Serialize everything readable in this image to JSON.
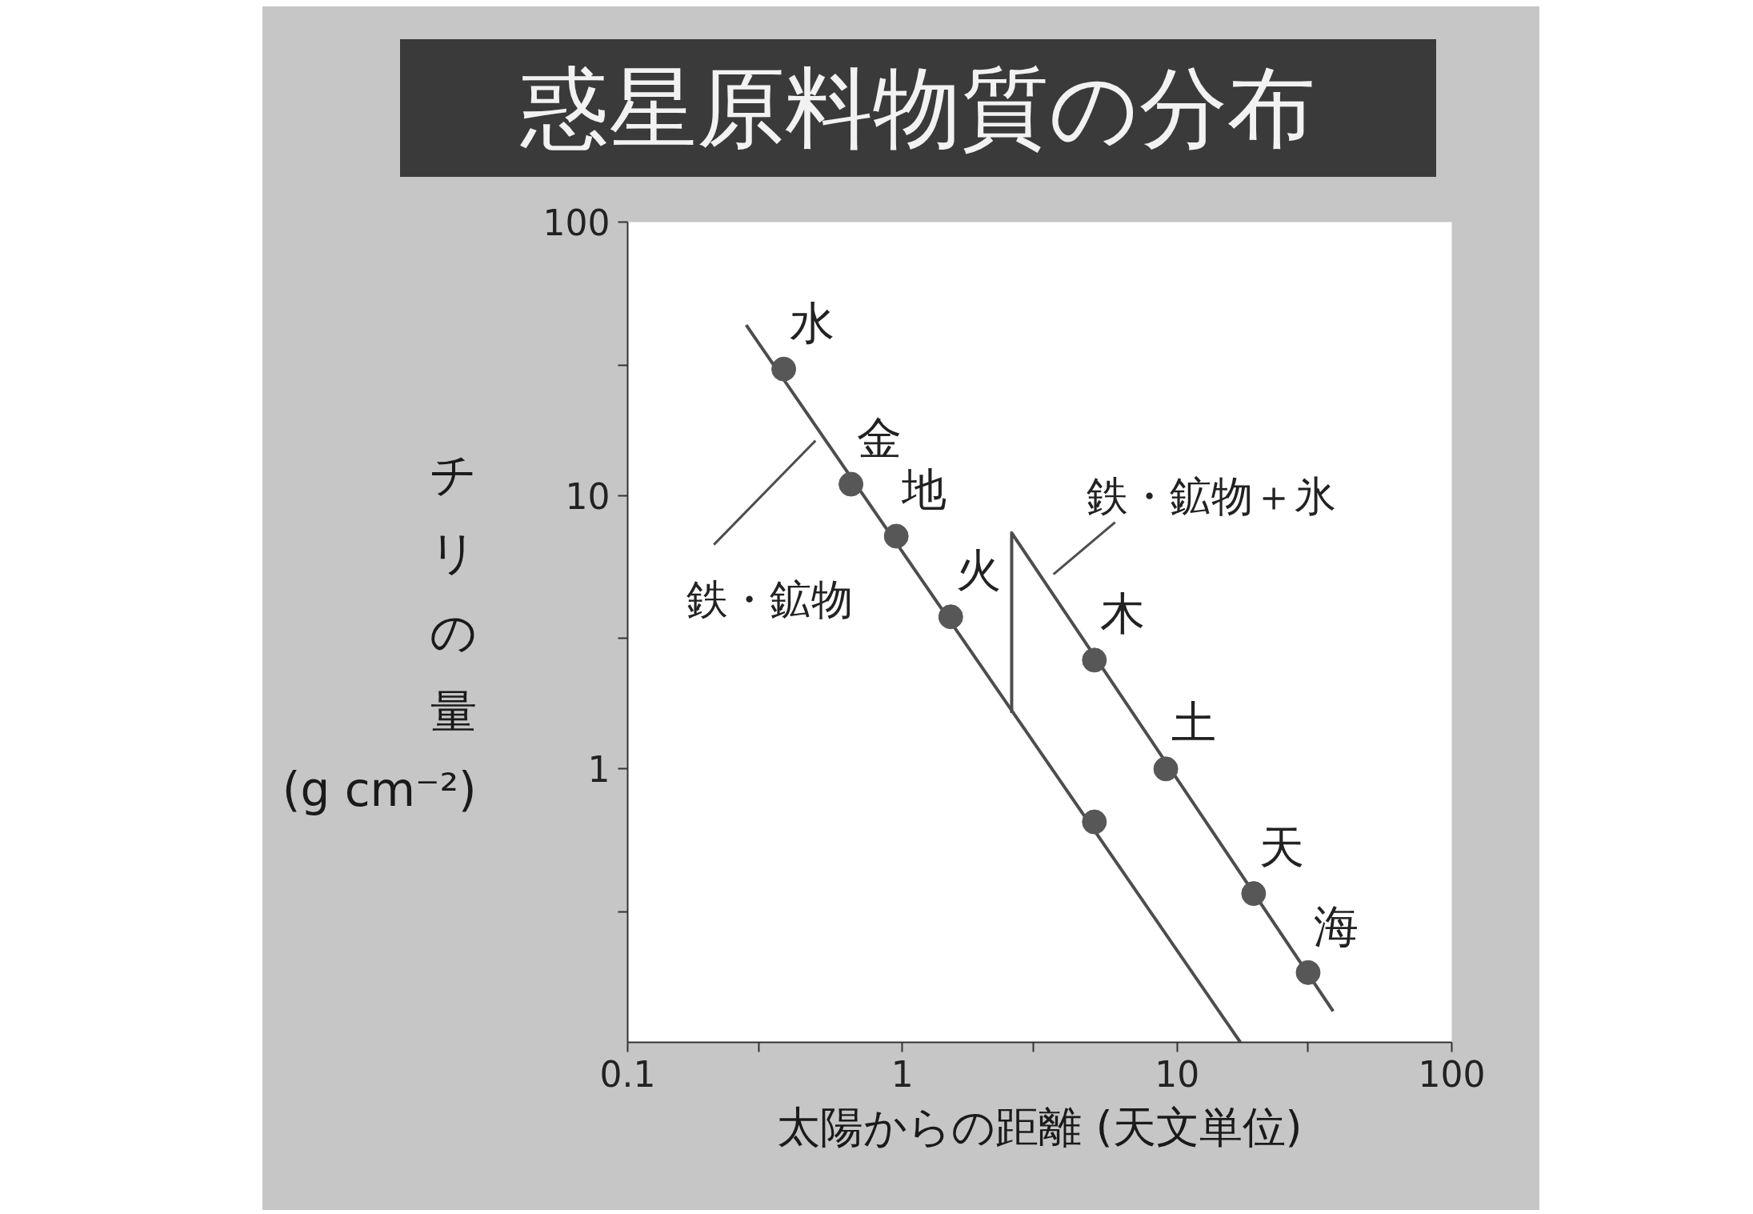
{
  "chart_data": {
    "type": "scatter",
    "title": "惑星原料物質の分布",
    "xlabel": "太陽からの距離 (天文単位)",
    "ylabel": "チリの量 (g cm⁻²)",
    "log": "xy",
    "xlim": [
      0.1,
      100
    ],
    "ylim": [
      0.1,
      100
    ],
    "xticks": [
      0.1,
      {
        "value": 0.3,
        "label": null
      },
      1,
      {
        "value": 3,
        "label": null
      },
      10,
      {
        "value": 30,
        "label": null
      },
      100
    ],
    "yticks": [
      {
        "value": 0.3,
        "label": null
      },
      1,
      {
        "value": 3,
        "label": null
      },
      10,
      {
        "value": 30,
        "label": null
      },
      100
    ],
    "series": [
      {
        "name": "鉄・鉱物",
        "type": "line",
        "color": "#4d4d4d",
        "x": [
          0.27,
          17
        ],
        "values": [
          42,
          0.1
        ]
      },
      {
        "name": "鉄・鉱物＋氷",
        "type": "line",
        "color": "#4d4d4d",
        "x": [
          2.5,
          2.5,
          37
        ],
        "values": [
          1.6,
          7.3,
          0.13
        ]
      },
      {
        "marker": "circle",
        "color": "#575757",
        "x": [
          0.37,
          0.65,
          0.95,
          1.5,
          5.0,
          5.0,
          9.1,
          19,
          30
        ],
        "values": [
          29,
          11,
          7.1,
          3.6,
          0.64,
          2.5,
          1.0,
          0.35,
          0.18
        ]
      }
    ],
    "annotations": [
      {
        "text": "水",
        "x": 0.37,
        "y": 29
      },
      {
        "text": "金",
        "x": 0.65,
        "y": 11
      },
      {
        "text": "地",
        "x": 0.95,
        "y": 7.1
      },
      {
        "text": "火",
        "x": 1.5,
        "y": 3.6
      },
      {
        "text": "木",
        "x": 5.0,
        "y": 2.5
      },
      {
        "text": "土",
        "x": 9.1,
        "y": 1.0
      },
      {
        "text": "天",
        "x": 19,
        "y": 0.35
      },
      {
        "text": "海",
        "x": 30,
        "y": 0.18
      }
    ]
  }
}
